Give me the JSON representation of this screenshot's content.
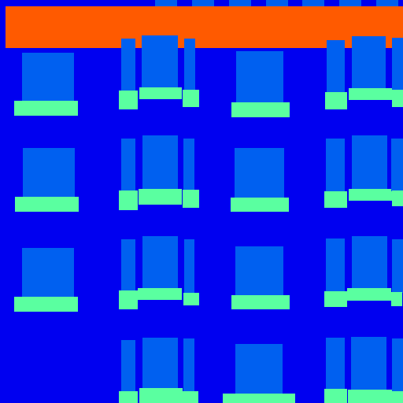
{
  "colors": {
    "background": "#0000f0",
    "banner": "#ff5a00",
    "window": "#0060f0",
    "sill": "#5affa0"
  }
}
